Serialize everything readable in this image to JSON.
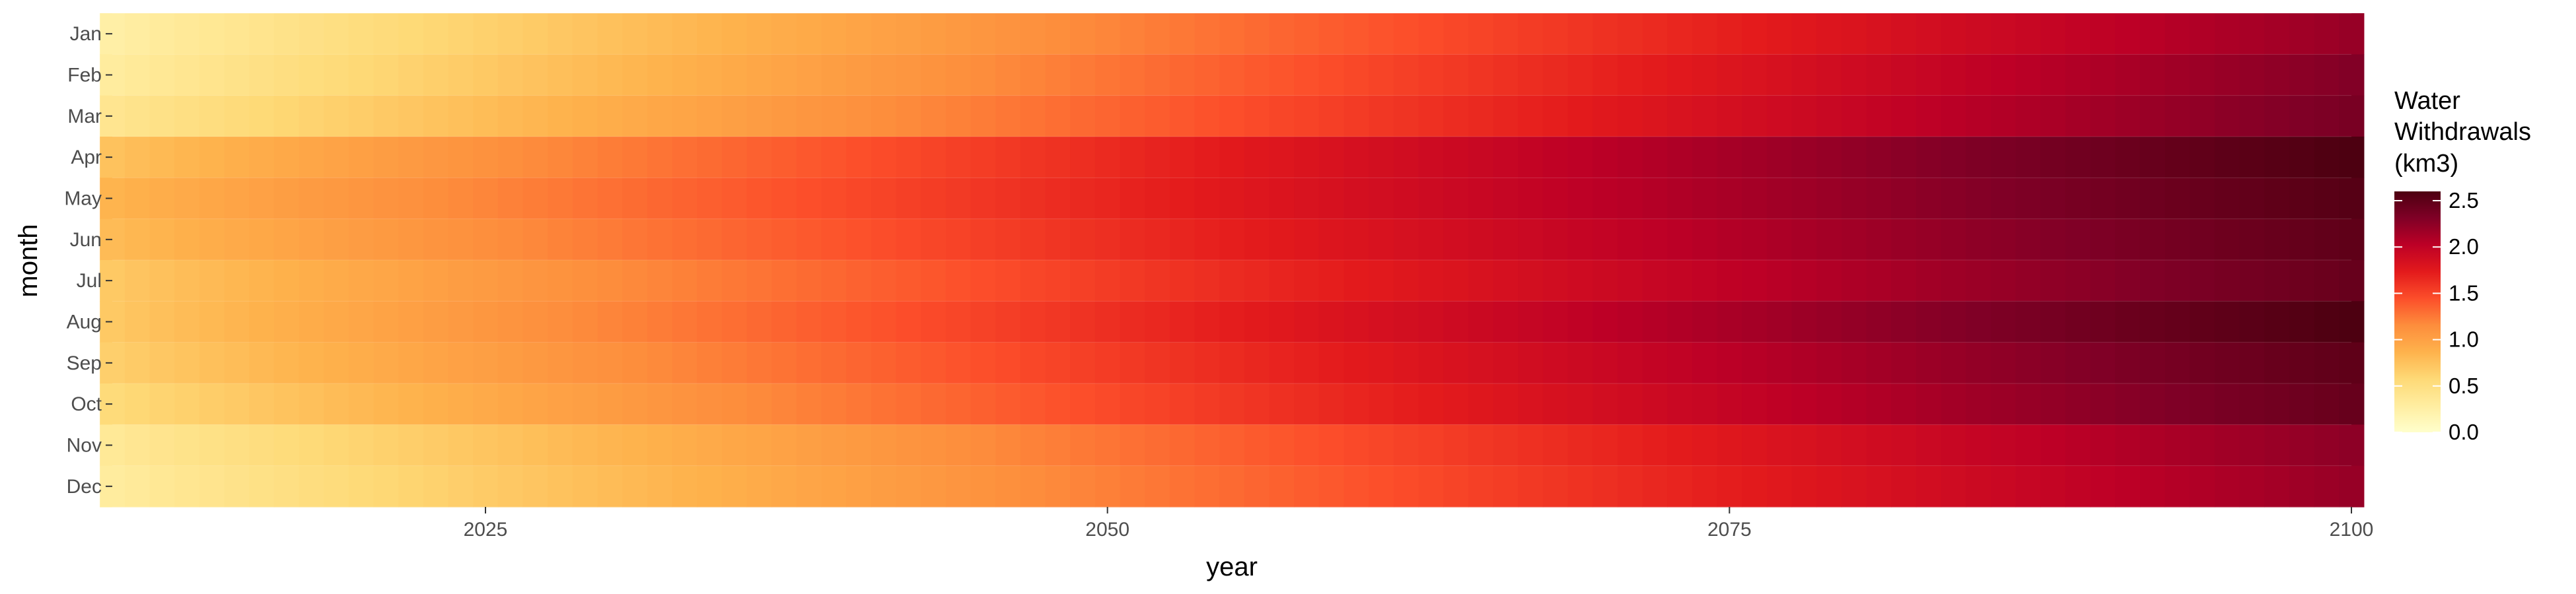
{
  "chart_data": {
    "type": "heatmap",
    "xlabel": "year",
    "ylabel": "month",
    "x_range": [
      2010,
      2100
    ],
    "x_ticks": [
      2025,
      2050,
      2075,
      2100
    ],
    "months": [
      "Jan",
      "Feb",
      "Mar",
      "Apr",
      "May",
      "Jun",
      "Jul",
      "Aug",
      "Sep",
      "Oct",
      "Nov",
      "Dec"
    ],
    "month_index_min": [
      0.25,
      0.3,
      0.4,
      0.75,
      0.85,
      0.8,
      0.7,
      0.7,
      0.65,
      0.55,
      0.35,
      0.3
    ],
    "month_index_max": [
      2.2,
      2.3,
      2.35,
      2.6,
      2.55,
      2.5,
      2.45,
      2.6,
      2.5,
      2.45,
      2.25,
      2.2
    ],
    "legend": {
      "title_lines": [
        "Water",
        "Withdrawals",
        "(km3)"
      ],
      "min": 0.0,
      "max": 2.6,
      "ticks": [
        "0.0",
        "0.5",
        "1.0",
        "1.5",
        "2.0",
        "2.5"
      ]
    },
    "grid": true,
    "legend_position": "right",
    "colors": {
      "scale": [
        "#ffffcc",
        "#ffeda0",
        "#fed976",
        "#feb24c",
        "#fd8d3c",
        "#fc4e2a",
        "#e31a1c",
        "#bd0026",
        "#800026",
        "#4d0011"
      ],
      "panel_background": "#ebebeb",
      "grid": "#ffffff"
    }
  }
}
